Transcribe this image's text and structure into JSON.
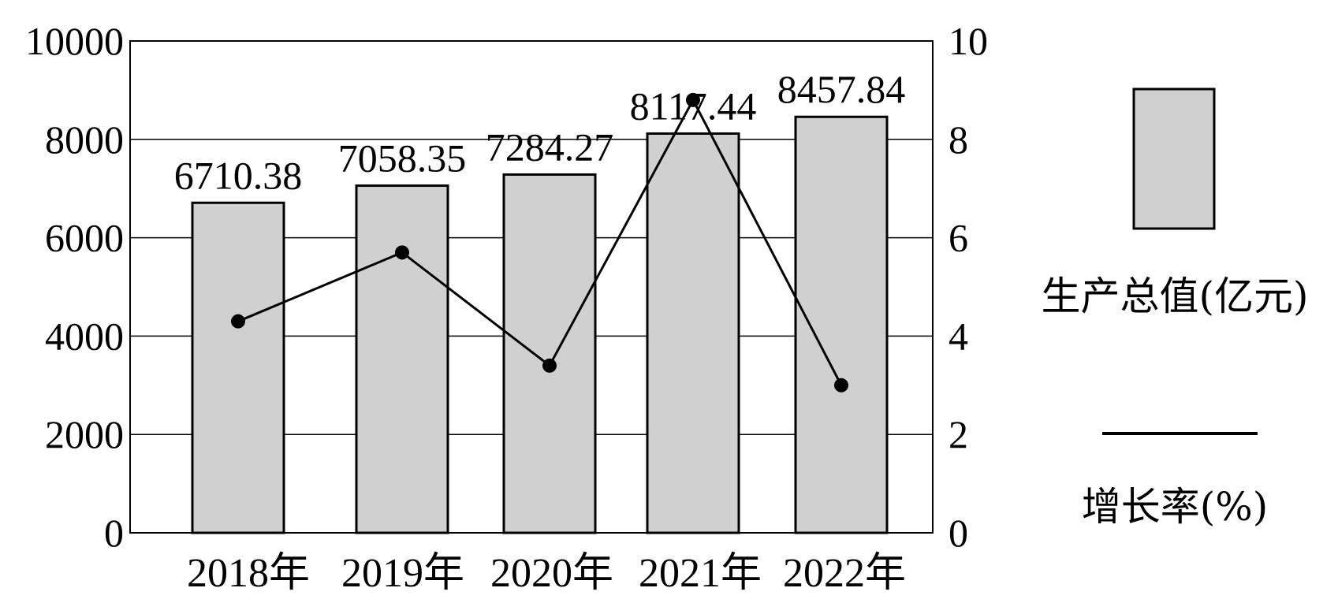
{
  "chart_data": {
    "type": "bar",
    "categories": [
      "2018年",
      "2019年",
      "2020年",
      "2021年",
      "2022年"
    ],
    "series": [
      {
        "name": "生产总值(亿元)",
        "type": "bar",
        "axis": "left",
        "values": [
          6710.38,
          7058.35,
          7284.27,
          8117.44,
          8457.84
        ],
        "labels": [
          "6710.38",
          "7058.35",
          "7284.27",
          "8117.44",
          "8457.84"
        ]
      },
      {
        "name": "增长率(%)",
        "type": "line",
        "axis": "right",
        "values": [
          4.3,
          5.7,
          3.4,
          8.8,
          3.0
        ]
      }
    ],
    "y_left": {
      "ylim": [
        0,
        10000
      ],
      "ticks": [
        "0",
        "2000",
        "4000",
        "6000",
        "8000",
        "10000"
      ]
    },
    "y_right": {
      "ylim": [
        0,
        10
      ],
      "ticks": [
        "0",
        "2",
        "4",
        "6",
        "8",
        "10"
      ]
    },
    "grid": true,
    "legend_position": "right",
    "colors": {
      "bar_fill": "#d0d0d0",
      "stroke": "#000000"
    }
  }
}
